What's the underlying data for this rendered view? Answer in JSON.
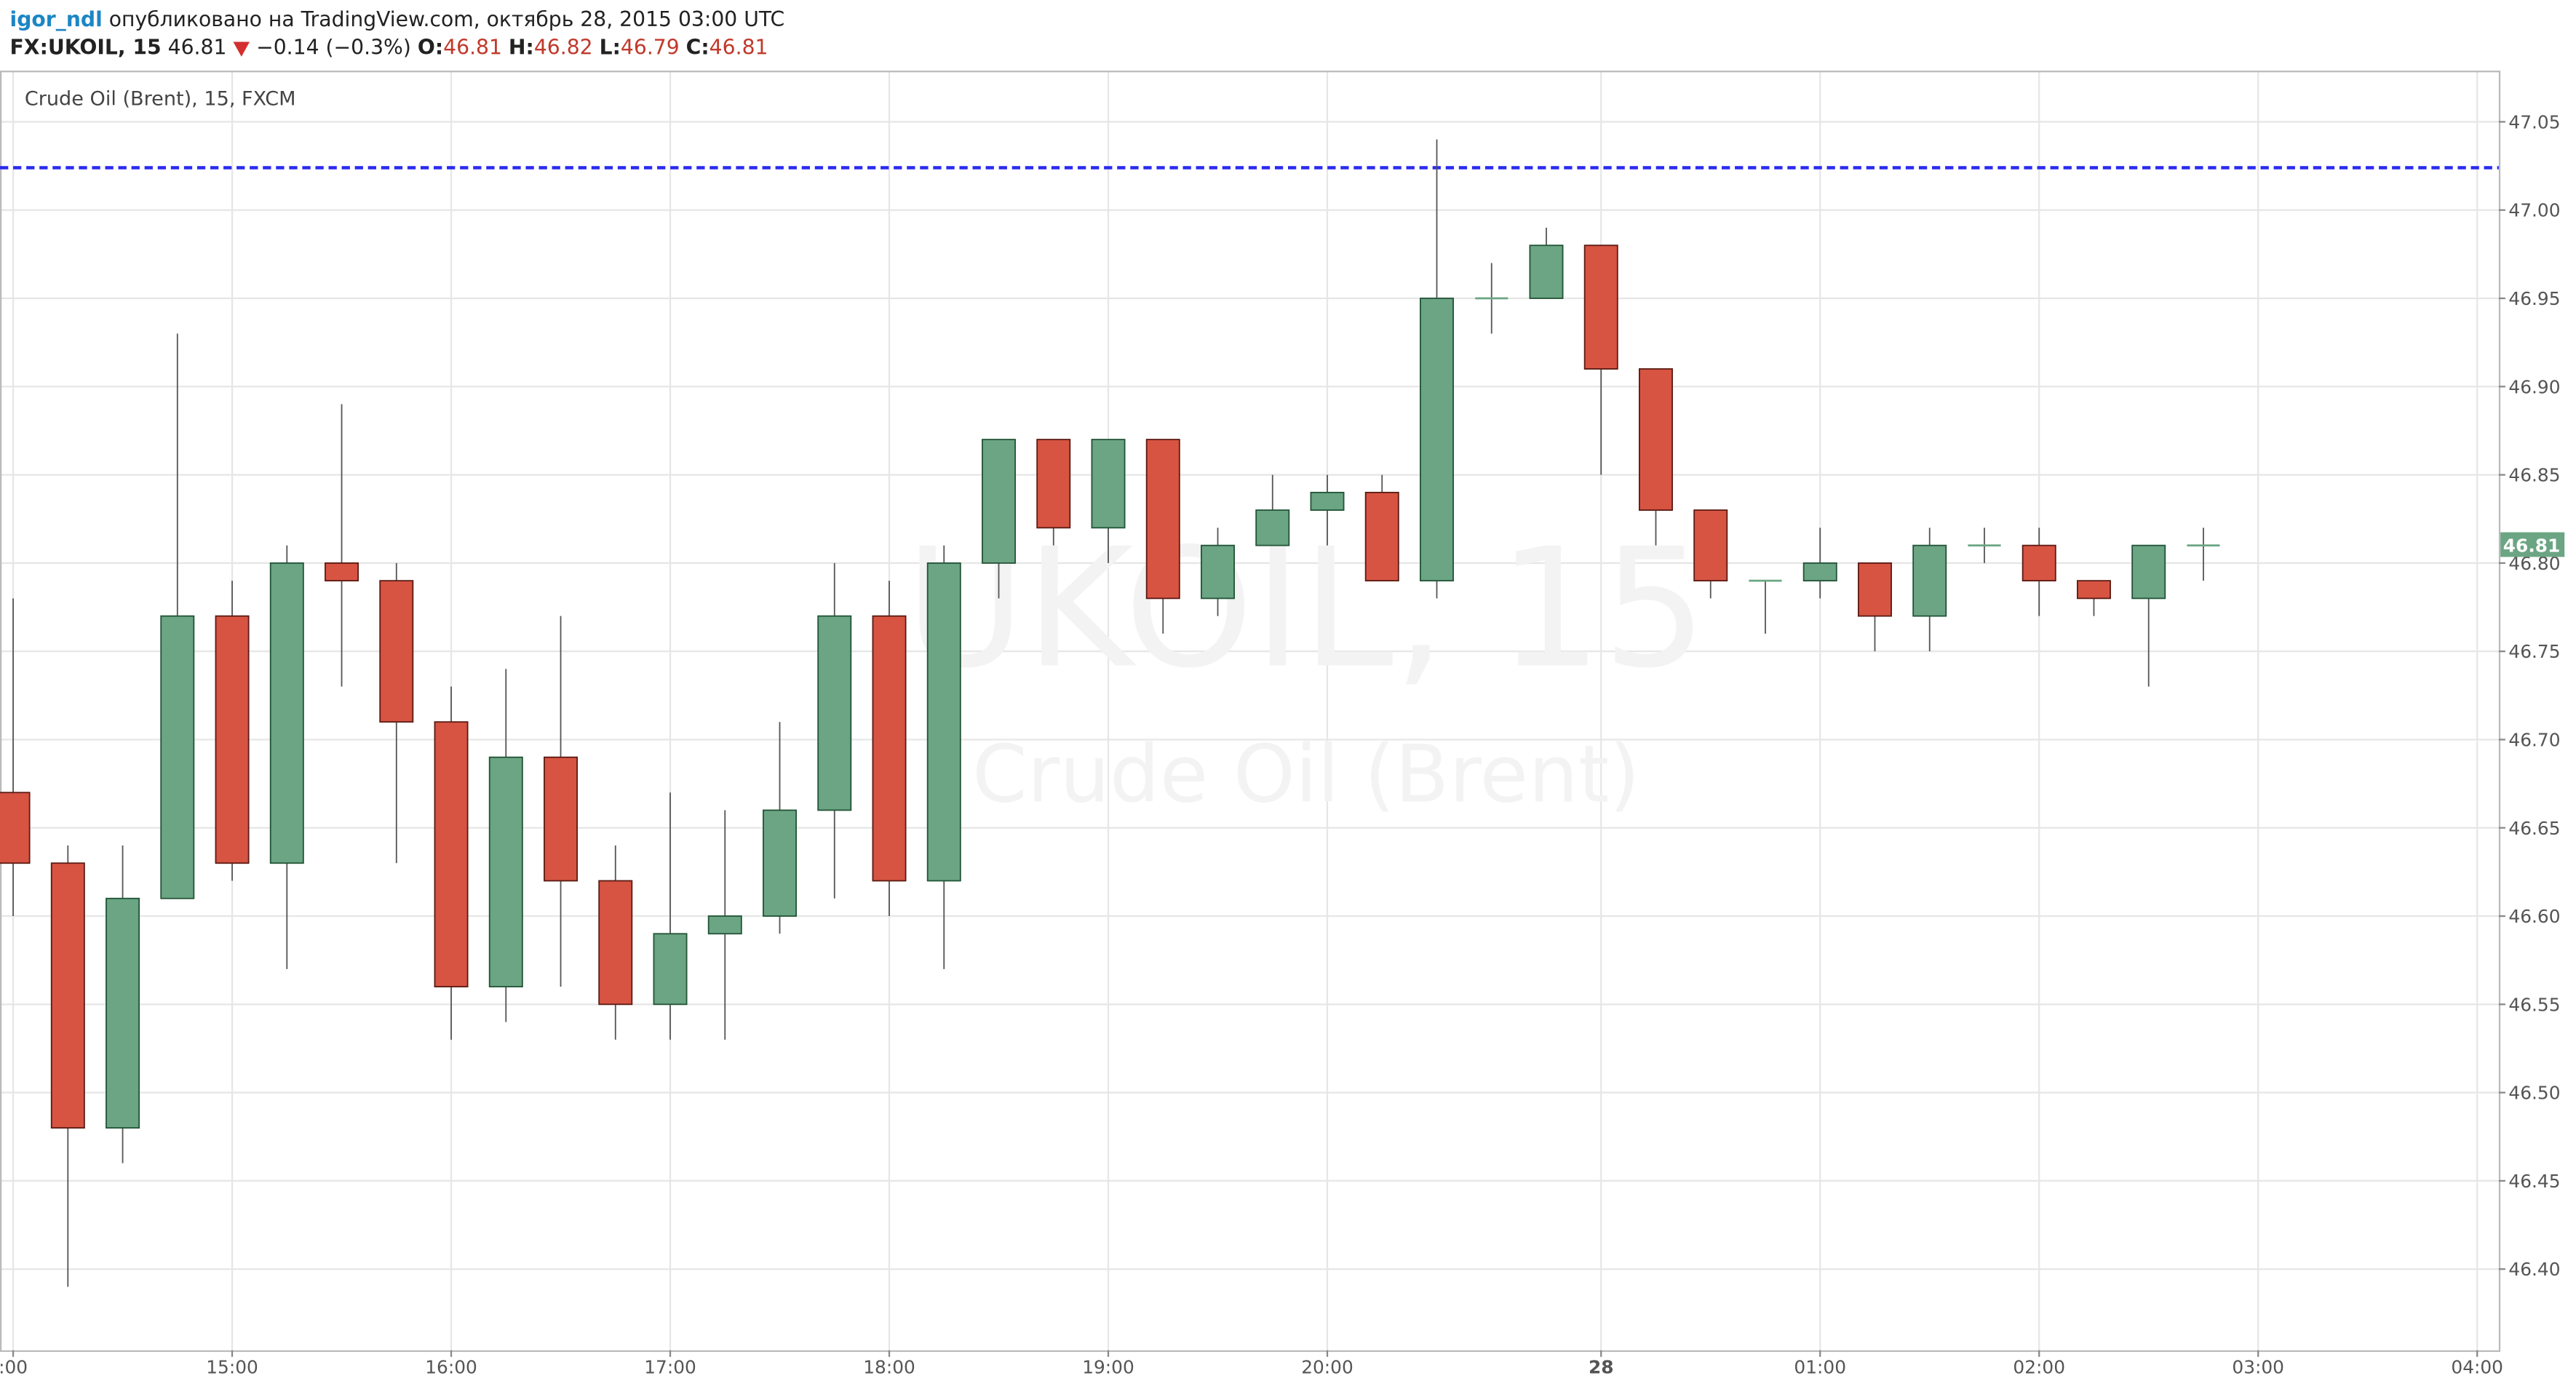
{
  "header": {
    "author": "igor_ndl",
    "published": "опубликовано на TradingView.com, октябрь 28, 2015 03:00 UTC"
  },
  "quote": {
    "symbol": "FX:UKOIL, 15",
    "last": "46.81",
    "change": "−0.14 (−0.3%)",
    "open_label": "O:",
    "open": "46.81",
    "high_label": "H:",
    "high": "46.82",
    "low_label": "L:",
    "low": "46.79",
    "close_label": "C:",
    "close": "46.81"
  },
  "chart_data": {
    "type": "candlestick",
    "legend": "Crude Oil (Brent), 15, FXCM",
    "watermark": "UKOIL, 15",
    "watermark_subtitle": "Crude Oil (Brent)",
    "categories": [
      ":00",
      null,
      null,
      null,
      "15:00",
      null,
      null,
      null,
      "16:00",
      null,
      null,
      null,
      "17:00",
      null,
      null,
      null,
      "18:00",
      null,
      null,
      null,
      "19:00",
      null,
      null,
      null,
      "20:00",
      null,
      null,
      null,
      null,
      "28",
      null,
      null,
      null,
      "01:00",
      null,
      null,
      null,
      "02:00",
      null,
      null,
      null,
      "03:00",
      null,
      null,
      null,
      "04:00"
    ],
    "open": [
      46.67,
      46.63,
      46.48,
      46.61,
      46.77,
      46.63,
      46.8,
      46.79,
      46.71,
      46.56,
      46.69,
      46.62,
      46.55,
      46.59,
      46.6,
      46.66,
      46.77,
      46.62,
      46.8,
      46.87,
      46.82,
      46.87,
      46.78,
      46.81,
      46.83,
      46.84,
      46.79,
      46.95,
      46.95,
      46.98,
      46.91,
      46.83,
      46.79,
      46.79,
      46.8,
      46.77,
      46.81,
      46.81,
      46.79,
      46.78,
      46.81,
      null,
      null,
      null,
      null,
      null
    ],
    "high": [
      46.78,
      46.64,
      46.64,
      46.93,
      46.79,
      46.81,
      46.89,
      46.8,
      46.73,
      46.74,
      46.77,
      46.64,
      46.67,
      46.66,
      46.71,
      46.8,
      46.79,
      46.81,
      46.87,
      46.87,
      46.87,
      46.87,
      46.82,
      46.85,
      46.85,
      46.85,
      47.04,
      46.97,
      46.99,
      46.98,
      46.91,
      46.83,
      46.79,
      46.82,
      46.8,
      46.82,
      46.82,
      46.82,
      46.79,
      46.81,
      46.82,
      null,
      null,
      null,
      null,
      null
    ],
    "low": [
      46.6,
      46.39,
      46.46,
      46.61,
      46.62,
      46.57,
      46.73,
      46.63,
      46.53,
      46.54,
      46.56,
      46.53,
      46.53,
      46.53,
      46.59,
      46.61,
      46.6,
      46.57,
      46.78,
      46.81,
      46.8,
      46.76,
      46.77,
      46.81,
      46.81,
      46.79,
      46.78,
      46.93,
      46.95,
      46.85,
      46.81,
      46.78,
      46.76,
      46.78,
      46.75,
      46.75,
      46.8,
      46.77,
      46.77,
      46.73,
      46.79,
      null,
      null,
      null,
      null,
      null
    ],
    "close": [
      46.63,
      46.48,
      46.61,
      46.77,
      46.63,
      46.8,
      46.79,
      46.71,
      46.56,
      46.69,
      46.62,
      46.55,
      46.59,
      46.6,
      46.66,
      46.77,
      46.62,
      46.8,
      46.87,
      46.82,
      46.87,
      46.78,
      46.81,
      46.83,
      46.84,
      46.79,
      46.95,
      46.95,
      46.98,
      46.91,
      46.83,
      46.79,
      46.79,
      46.8,
      46.77,
      46.81,
      46.81,
      46.79,
      46.78,
      46.81,
      46.81,
      null,
      null,
      null,
      null,
      null
    ],
    "up_color": "#6ba583",
    "down_color": "#d75442",
    "ylim": [
      46.354,
      47.079
    ],
    "yticks": [
      {
        "value": 46.4,
        "label": "46.40"
      },
      46.45,
      {
        "value": 46.5,
        "label": "46.50"
      },
      46.55,
      {
        "value": 46.6,
        "label": "46.60"
      },
      46.65,
      {
        "value": 46.7,
        "label": "46.70"
      },
      46.75,
      {
        "value": 46.8,
        "label": "46.80"
      },
      46.85,
      {
        "value": 46.9,
        "label": "46.90"
      },
      46.95,
      {
        "value": 47.0,
        "label": "47.00"
      },
      47.05
    ],
    "last_price": 46.81,
    "reference_line": 47.024,
    "reference_color": "#2a2aef",
    "grid": true
  }
}
